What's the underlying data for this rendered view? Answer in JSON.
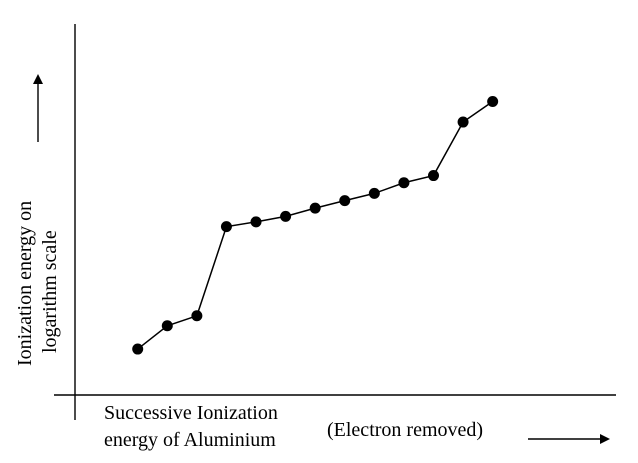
{
  "chart_data": {
    "type": "line",
    "xlabel_lines": [
      "Successive Ionization",
      "energy of Aluminium"
    ],
    "xlabel_secondary": "(Electron removed)",
    "ylabel_lines": [
      "Ionization energy on",
      "logarithm scale"
    ],
    "x": [
      1,
      2,
      3,
      4,
      5,
      6,
      7,
      8,
      9,
      10,
      11,
      12,
      13
    ],
    "values": [
      1.0,
      1.68,
      1.97,
      4.57,
      4.71,
      4.87,
      5.11,
      5.33,
      5.54,
      5.85,
      6.06,
      7.62,
      8.22
    ],
    "xlim": [
      -1.12,
      17.17
    ],
    "ylim": [
      -0.34,
      10.48
    ],
    "grid": false,
    "legend": "none",
    "axis_color": "#000000",
    "line_color": "#000000",
    "marker_color": "#000000",
    "marker": "filled-circle",
    "arrow_color": "#000000"
  }
}
